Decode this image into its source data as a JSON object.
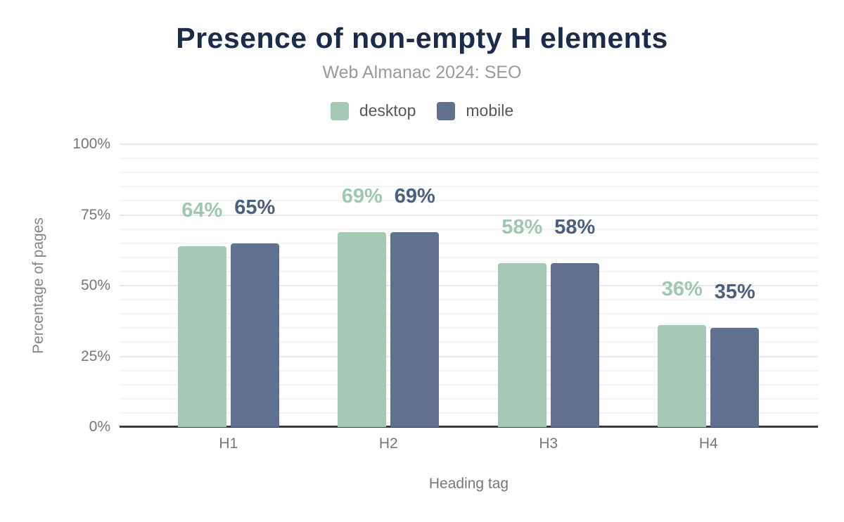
{
  "title": "Presence of non-empty H elements",
  "subtitle": "Web Almanac 2024: SEO",
  "legend": [
    {
      "label": "desktop",
      "color": "#a6c9b5"
    },
    {
      "label": "mobile",
      "color": "#60708d"
    }
  ],
  "chart_data": {
    "type": "bar",
    "title": "Presence of non-empty H elements",
    "subtitle": "Web Almanac 2024: SEO",
    "categories": [
      "H1",
      "H2",
      "H3",
      "H4"
    ],
    "series": [
      {
        "name": "desktop",
        "values": [
          64,
          69,
          58,
          36
        ],
        "labels": [
          "64%",
          "69%",
          "58%",
          "36%"
        ],
        "color": "#a6c9b5",
        "label_color": "#a1c6b2"
      },
      {
        "name": "mobile",
        "values": [
          65,
          69,
          58,
          35
        ],
        "labels": [
          "65%",
          "69%",
          "58%",
          "35%"
        ],
        "color": "#60708d",
        "label_color": "#4c5f7f"
      }
    ],
    "xlabel": "Heading tag",
    "ylabel": "Percentage of pages",
    "ylim": [
      0,
      100
    ],
    "yticks": [
      0,
      25,
      50,
      75,
      100
    ],
    "ytick_suffix": "%",
    "minor_grid_step": 5,
    "major_grid_step": 25,
    "grid": true,
    "legend_position": "top",
    "colors": {
      "title": "#1c2b4a",
      "subtitle": "#9b9b9b",
      "tick_text": "#75787b",
      "axis_line": "#37393b",
      "minor_grid": "#f4f4f4",
      "major_grid": "#e9e9e9"
    }
  }
}
